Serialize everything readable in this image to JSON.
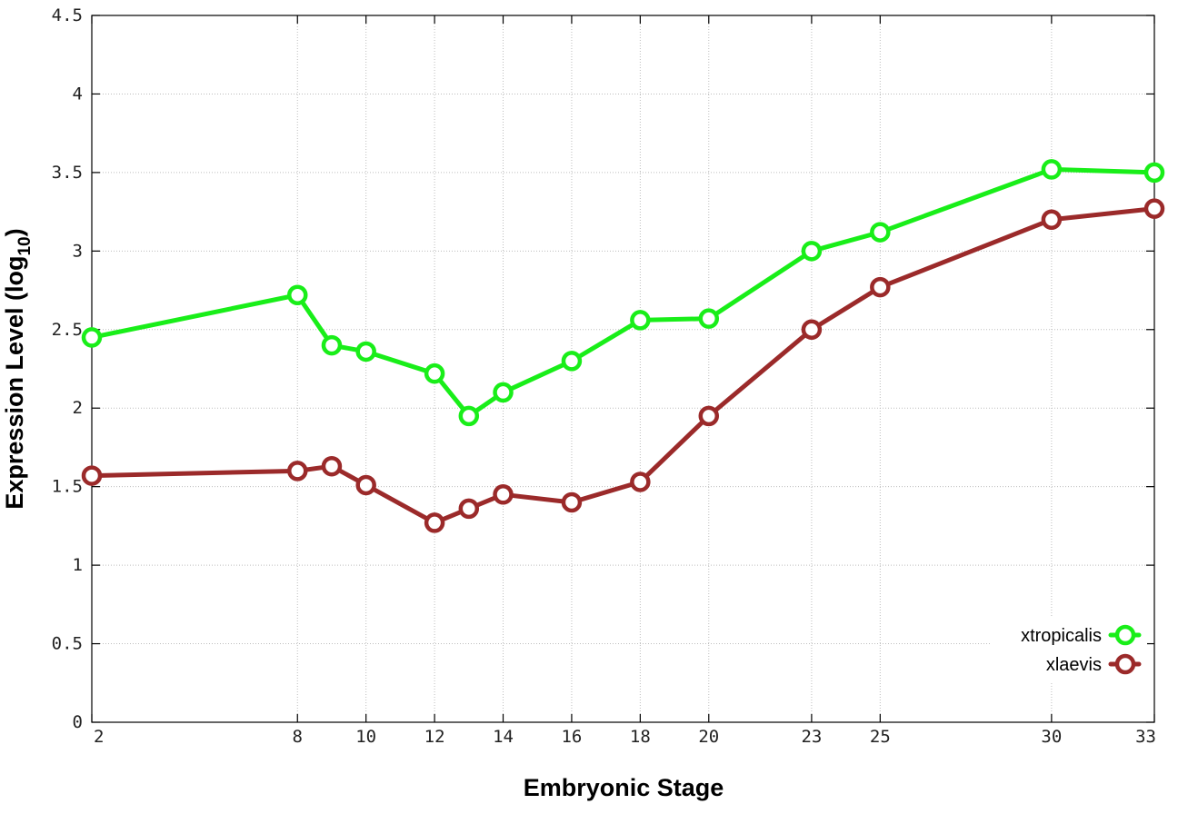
{
  "chart_data": {
    "type": "line",
    "x": [
      2,
      8,
      9,
      10,
      12,
      13,
      14,
      16,
      18,
      20,
      23,
      25,
      30,
      33
    ],
    "x_ticks": [
      2,
      8,
      10,
      12,
      14,
      16,
      18,
      20,
      23,
      25,
      30,
      33
    ],
    "xlabel": "Embryonic Stage",
    "ylabel_text": "Expression Level (log",
    "ylabel_sub": "10",
    "ylabel_close": ")",
    "ylim": [
      0,
      4.5
    ],
    "y_ticks": [
      "0",
      "0.5",
      "1",
      "1.5",
      "2",
      "2.5",
      "3",
      "3.5",
      "4",
      "4.5"
    ],
    "grid": true,
    "legend_position": "bottom-right",
    "series": [
      {
        "name": "xtropicalis",
        "color": "#19ee19",
        "values": [
          2.45,
          2.72,
          2.4,
          2.36,
          2.22,
          1.95,
          2.1,
          2.3,
          2.56,
          2.57,
          3.0,
          3.12,
          3.52,
          3.5
        ]
      },
      {
        "name": "xlaevis",
        "color": "#9b2a2a",
        "values": [
          1.57,
          1.6,
          1.63,
          1.51,
          1.27,
          1.36,
          1.45,
          1.4,
          1.53,
          1.95,
          2.5,
          2.77,
          3.2,
          3.27
        ]
      }
    ]
  }
}
